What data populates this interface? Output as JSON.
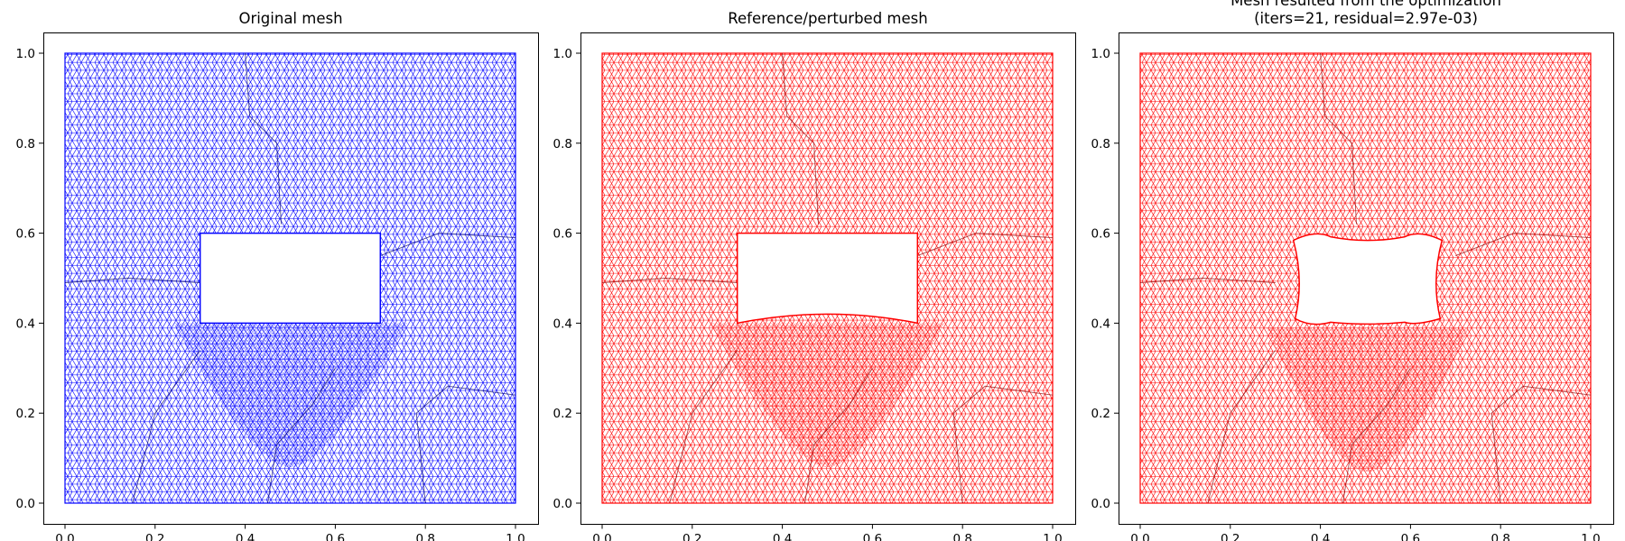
{
  "chart_data": [
    {
      "type": "mesh",
      "title_lines": [
        "Original mesh"
      ],
      "xlim": [
        0,
        1
      ],
      "ylim": [
        0,
        1
      ],
      "xticks": [
        "0.0",
        "0.2",
        "0.4",
        "0.6",
        "0.8",
        "1.0"
      ],
      "yticks": [
        "0.0",
        "0.2",
        "0.4",
        "0.6",
        "0.8",
        "1.0"
      ],
      "color": "#0000ff",
      "hole": {
        "x": [
          0.3,
          0.7
        ],
        "y": [
          0.4,
          0.6
        ],
        "shape": "rectangle"
      }
    },
    {
      "type": "mesh",
      "title_lines": [
        "Reference/perturbed mesh"
      ],
      "xlim": [
        0,
        1
      ],
      "ylim": [
        0,
        1
      ],
      "xticks": [
        "0.0",
        "0.2",
        "0.4",
        "0.6",
        "0.8",
        "1.0"
      ],
      "yticks": [
        "0.0",
        "0.2",
        "0.4",
        "0.6",
        "0.8",
        "1.0"
      ],
      "color": "#ff0000",
      "hole": {
        "x": [
          0.3,
          0.7
        ],
        "y": [
          0.4,
          0.6
        ],
        "shape": "rectangle with bulged bottom edge",
        "bottom_bulge_peak_y": 0.42
      }
    },
    {
      "type": "mesh",
      "title_lines": [
        "Mesh resulted from the optimization",
        "(iters=21, residual=2.97e-03)"
      ],
      "xlim": [
        0,
        1
      ],
      "ylim": [
        0,
        1
      ],
      "xticks": [
        "0.0",
        "0.2",
        "0.4",
        "0.6",
        "0.8",
        "1.0"
      ],
      "yticks": [
        "0.0",
        "0.2",
        "0.4",
        "0.6",
        "0.8",
        "1.0"
      ],
      "color": "#ff0000",
      "hole": {
        "x": [
          0.34,
          0.67
        ],
        "y": [
          0.39,
          0.6
        ],
        "shape": "deformed rectangle"
      }
    }
  ]
}
